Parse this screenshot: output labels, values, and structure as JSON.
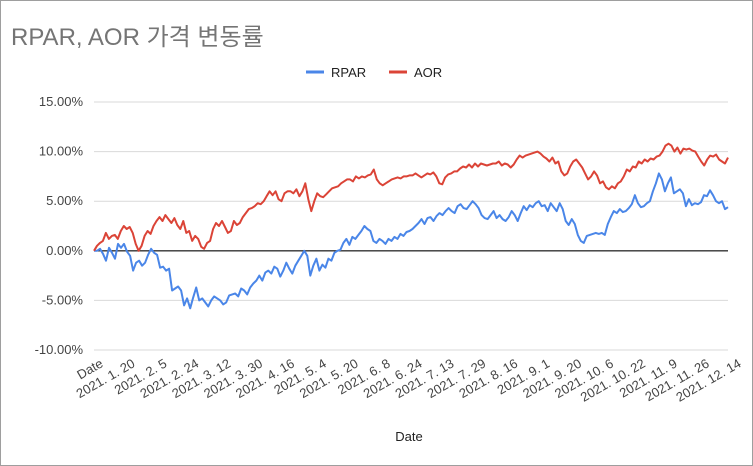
{
  "chart_data": {
    "type": "line",
    "title": "RPAR, AOR 가격 변동률",
    "xlabel": "Date",
    "ylabel": "",
    "ylim": [
      -0.1,
      0.15
    ],
    "y_ticks": [
      "15.00%",
      "10.00%",
      "5.00%",
      "0.00%",
      "-5.00%",
      "-10.00%"
    ],
    "y_tick_values": [
      0.15,
      0.1,
      0.05,
      0.0,
      -0.05,
      -0.1
    ],
    "x_tick_labels": [
      "Date",
      "2021. 1. 20",
      "2021. 2. 5",
      "2021. 2. 24",
      "2021. 3. 12",
      "2021. 3. 30",
      "2021. 4. 16",
      "2021. 5. 4",
      "2021. 5. 20",
      "2021. 6. 8",
      "2021. 6. 24",
      "2021. 7. 13",
      "2021. 7. 29",
      "2021. 8. 16",
      "2021. 9. 1",
      "2021. 9. 20",
      "2021. 10. 6",
      "2021. 10. 22",
      "2021. 11. 9",
      "2021. 11. 26",
      "2021. 12. 14"
    ],
    "legend_position": "top",
    "grid": true,
    "series": [
      {
        "name": "RPAR",
        "color": "#4a86e8",
        "values": [
          0.0,
          0.0,
          0.002,
          -0.003,
          -0.01,
          0.003,
          -0.002,
          -0.008,
          0.007,
          0.003,
          0.007,
          -0.001,
          -0.005,
          -0.02,
          -0.012,
          -0.01,
          -0.015,
          -0.012,
          -0.004,
          0.002,
          -0.002,
          -0.004,
          -0.017,
          -0.016,
          -0.02,
          -0.018,
          -0.04,
          -0.038,
          -0.036,
          -0.04,
          -0.055,
          -0.048,
          -0.058,
          -0.047,
          -0.037,
          -0.05,
          -0.048,
          -0.052,
          -0.056,
          -0.05,
          -0.046,
          -0.048,
          -0.05,
          -0.054,
          -0.052,
          -0.045,
          -0.044,
          -0.043,
          -0.046,
          -0.038,
          -0.04,
          -0.044,
          -0.037,
          -0.033,
          -0.03,
          -0.025,
          -0.03,
          -0.022,
          -0.02,
          -0.023,
          -0.016,
          -0.018,
          -0.026,
          -0.02,
          -0.012,
          -0.018,
          -0.023,
          -0.015,
          -0.01,
          -0.005,
          0.0,
          -0.005,
          -0.025,
          -0.015,
          -0.008,
          -0.02,
          -0.014,
          -0.017,
          -0.008,
          -0.01,
          -0.002,
          0.0,
          0.001,
          0.008,
          0.012,
          0.006,
          0.014,
          0.012,
          0.016,
          0.02,
          0.025,
          0.022,
          0.02,
          0.01,
          0.008,
          0.012,
          0.01,
          0.007,
          0.012,
          0.01,
          0.014,
          0.012,
          0.017,
          0.015,
          0.019,
          0.02,
          0.022,
          0.025,
          0.028,
          0.032,
          0.027,
          0.033,
          0.034,
          0.03,
          0.035,
          0.038,
          0.036,
          0.04,
          0.043,
          0.04,
          0.038,
          0.045,
          0.047,
          0.043,
          0.042,
          0.046,
          0.05,
          0.047,
          0.043,
          0.036,
          0.033,
          0.032,
          0.036,
          0.04,
          0.033,
          0.036,
          0.032,
          0.03,
          0.034,
          0.04,
          0.036,
          0.03,
          0.038,
          0.045,
          0.041,
          0.046,
          0.044,
          0.048,
          0.05,
          0.045,
          0.046,
          0.04,
          0.048,
          0.044,
          0.04,
          0.048,
          0.042,
          0.03,
          0.026,
          0.032,
          0.027,
          0.016,
          0.01,
          0.008,
          0.015,
          0.016,
          0.017,
          0.018,
          0.017,
          0.018,
          0.016,
          0.027,
          0.034,
          0.04,
          0.038,
          0.042,
          0.039,
          0.04,
          0.043,
          0.047,
          0.056,
          0.048,
          0.044,
          0.045,
          0.048,
          0.05,
          0.06,
          0.068,
          0.078,
          0.072,
          0.06,
          0.068,
          0.074,
          0.058,
          0.06,
          0.062,
          0.058,
          0.045,
          0.052,
          0.046,
          0.048,
          0.047,
          0.049,
          0.056,
          0.055,
          0.061,
          0.056,
          0.05,
          0.048,
          0.05,
          0.042,
          0.044
        ]
      },
      {
        "name": "AOR",
        "color": "#db4437",
        "values": [
          0.0,
          0.005,
          0.008,
          0.01,
          0.018,
          0.012,
          0.015,
          0.016,
          0.012,
          0.02,
          0.025,
          0.022,
          0.024,
          0.018,
          0.007,
          0.0,
          0.005,
          0.015,
          0.02,
          0.017,
          0.025,
          0.03,
          0.034,
          0.03,
          0.036,
          0.032,
          0.028,
          0.033,
          0.026,
          0.022,
          0.03,
          0.018,
          0.02,
          0.01,
          0.015,
          0.012,
          0.004,
          0.002,
          0.008,
          0.01,
          0.022,
          0.028,
          0.025,
          0.03,
          0.024,
          0.018,
          0.02,
          0.03,
          0.026,
          0.028,
          0.034,
          0.038,
          0.042,
          0.043,
          0.045,
          0.048,
          0.047,
          0.05,
          0.055,
          0.06,
          0.056,
          0.06,
          0.052,
          0.05,
          0.058,
          0.06,
          0.06,
          0.058,
          0.062,
          0.055,
          0.06,
          0.068,
          0.052,
          0.04,
          0.05,
          0.058,
          0.055,
          0.054,
          0.057,
          0.06,
          0.063,
          0.064,
          0.065,
          0.068,
          0.07,
          0.072,
          0.072,
          0.07,
          0.075,
          0.073,
          0.075,
          0.074,
          0.076,
          0.077,
          0.082,
          0.072,
          0.068,
          0.066,
          0.068,
          0.07,
          0.072,
          0.073,
          0.074,
          0.073,
          0.075,
          0.075,
          0.076,
          0.076,
          0.078,
          0.076,
          0.074,
          0.076,
          0.078,
          0.077,
          0.079,
          0.075,
          0.068,
          0.067,
          0.074,
          0.077,
          0.078,
          0.08,
          0.08,
          0.083,
          0.085,
          0.084,
          0.087,
          0.084,
          0.088,
          0.085,
          0.088,
          0.087,
          0.086,
          0.087,
          0.088,
          0.088,
          0.09,
          0.086,
          0.088,
          0.087,
          0.084,
          0.087,
          0.092,
          0.096,
          0.094,
          0.096,
          0.097,
          0.098,
          0.099,
          0.1,
          0.098,
          0.095,
          0.093,
          0.09,
          0.094,
          0.088,
          0.09,
          0.08,
          0.076,
          0.078,
          0.085,
          0.09,
          0.092,
          0.088,
          0.084,
          0.078,
          0.072,
          0.075,
          0.08,
          0.076,
          0.068,
          0.07,
          0.064,
          0.062,
          0.065,
          0.063,
          0.068,
          0.07,
          0.075,
          0.082,
          0.08,
          0.085,
          0.084,
          0.09,
          0.088,
          0.092,
          0.09,
          0.093,
          0.092,
          0.095,
          0.096,
          0.1,
          0.106,
          0.108,
          0.106,
          0.1,
          0.104,
          0.098,
          0.103,
          0.102,
          0.103,
          0.101,
          0.1,
          0.095,
          0.09,
          0.086,
          0.092,
          0.096,
          0.095,
          0.097,
          0.092,
          0.09,
          0.088,
          0.094
        ]
      }
    ]
  }
}
